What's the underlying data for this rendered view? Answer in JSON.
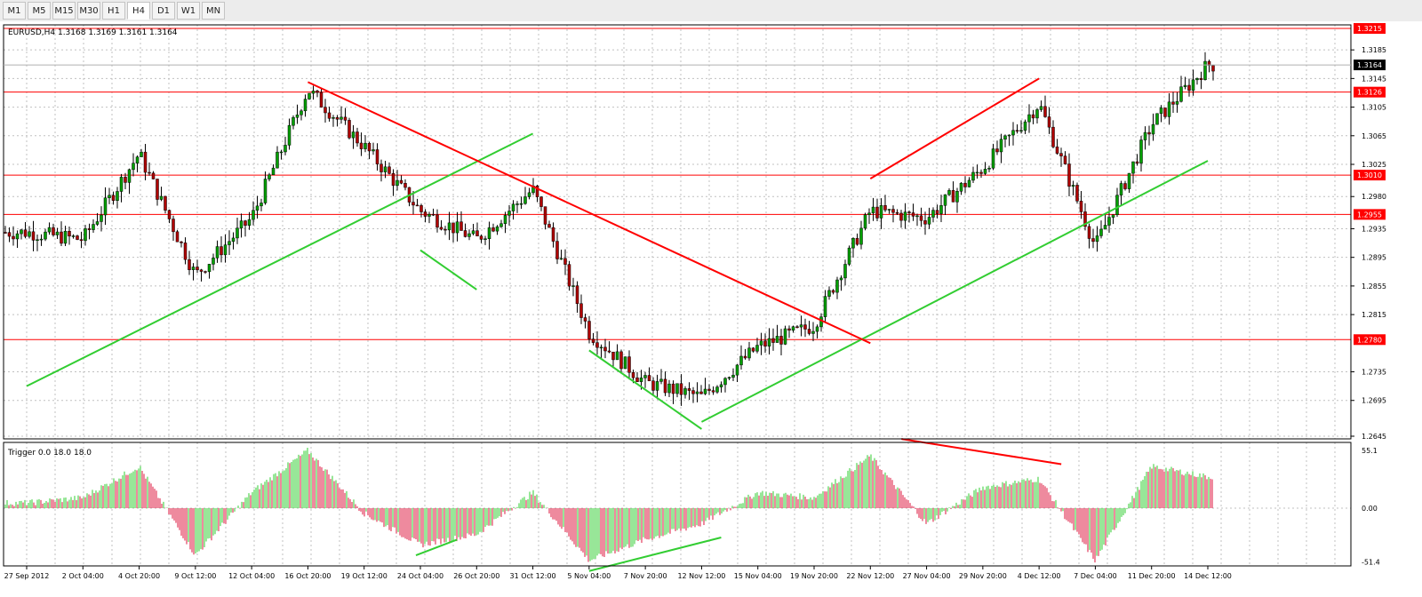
{
  "timeframes": {
    "items": [
      "M1",
      "M5",
      "M15",
      "M30",
      "H1",
      "H4",
      "D1",
      "W1",
      "MN"
    ],
    "active": "H4"
  },
  "main_panel": {
    "title": "EURUSD,H4  1.3168 1.3169 1.3161 1.3164",
    "price_ticks": [
      "1.3185",
      "1.3145",
      "1.3105",
      "1.3065",
      "1.3025",
      "1.2980",
      "1.2935",
      "1.2895",
      "1.2855",
      "1.2815",
      "1.2735",
      "1.2695",
      "1.2645"
    ],
    "current_price": "1.3164",
    "levels": [
      {
        "value": 1.3215,
        "label": "1.3215"
      },
      {
        "value": 1.3126,
        "label": "1.3126"
      },
      {
        "value": 1.301,
        "label": "1.3010"
      },
      {
        "value": 1.2955,
        "label": "1.2955"
      },
      {
        "value": 1.278,
        "label": "1.2780"
      }
    ]
  },
  "indicator_panel": {
    "title": "Trigger 0.0 18.0 18.0",
    "ticks": [
      "55.1",
      "0.00",
      "-51.4"
    ]
  },
  "time_axis": [
    "27 Sep 2012",
    "2 Oct 04:00",
    "4 Oct 20:00",
    "9 Oct 12:00",
    "12 Oct 04:00",
    "16 Oct 20:00",
    "19 Oct 12:00",
    "24 Oct 04:00",
    "26 Oct 20:00",
    "31 Oct 12:00",
    "5 Nov 04:00",
    "7 Nov 20:00",
    "12 Nov 12:00",
    "15 Nov 04:00",
    "19 Nov 20:00",
    "22 Nov 12:00",
    "27 Nov 04:00",
    "29 Nov 20:00",
    "4 Dec 12:00",
    "7 Dec 04:00",
    "11 Dec 20:00",
    "14 Dec 12:00"
  ],
  "colors": {
    "bull_candle": "#00a000",
    "bear_candle": "#b00000",
    "support_line": "#32cd32",
    "resistance_line": "#ff0000",
    "grid": "#c0c0c0",
    "level_label_bg": "#ff0000"
  },
  "chart_data": {
    "type": "candlestick",
    "symbol": "EURUSD",
    "timeframe": "H4",
    "ylim": [
      1.2645,
      1.3215
    ],
    "close_path": [
      {
        "t": "27 Sep 2012",
        "close": 1.293
      },
      {
        "t": "2 Oct 04:00",
        "close": 1.292
      },
      {
        "t": "4 Oct 20:00",
        "close": 1.304
      },
      {
        "t": "9 Oct 12:00",
        "close": 1.287
      },
      {
        "t": "12 Oct 04:00",
        "close": 1.295
      },
      {
        "t": "16 Oct 20:00",
        "close": 1.313
      },
      {
        "t": "19 Oct 12:00",
        "close": 1.305
      },
      {
        "t": "24 Oct 04:00",
        "close": 1.296
      },
      {
        "t": "26 Oct 20:00",
        "close": 1.292
      },
      {
        "t": "31 Oct 12:00",
        "close": 1.299
      },
      {
        "t": "5 Nov 04:00",
        "close": 1.279
      },
      {
        "t": "7 Nov 20:00",
        "close": 1.272
      },
      {
        "t": "12 Nov 12:00",
        "close": 1.27
      },
      {
        "t": "15 Nov 04:00",
        "close": 1.277
      },
      {
        "t": "19 Nov 20:00",
        "close": 1.28
      },
      {
        "t": "22 Nov 12:00",
        "close": 1.296
      },
      {
        "t": "27 Nov 04:00",
        "close": 1.295
      },
      {
        "t": "29 Nov 20:00",
        "close": 1.302
      },
      {
        "t": "4 Dec 12:00",
        "close": 1.311
      },
      {
        "t": "7 Dec 04:00",
        "close": 1.291
      },
      {
        "t": "11 Dec 20:00",
        "close": 1.308
      },
      {
        "t": "14 Dec 12:00",
        "close": 1.3164
      }
    ],
    "oscillator_path": [
      {
        "t": "27 Sep 2012",
        "v": 5
      },
      {
        "t": "2 Oct 04:00",
        "v": 10
      },
      {
        "t": "4 Oct 20:00",
        "v": 40
      },
      {
        "t": "9 Oct 12:00",
        "v": -45
      },
      {
        "t": "12 Oct 04:00",
        "v": 15
      },
      {
        "t": "16 Oct 20:00",
        "v": 55
      },
      {
        "t": "19 Oct 12:00",
        "v": -5
      },
      {
        "t": "24 Oct 04:00",
        "v": -35
      },
      {
        "t": "26 Oct 20:00",
        "v": -25
      },
      {
        "t": "31 Oct 12:00",
        "v": 15
      },
      {
        "t": "5 Nov 04:00",
        "v": -50
      },
      {
        "t": "7 Nov 20:00",
        "v": -30
      },
      {
        "t": "12 Nov 12:00",
        "v": -15
      },
      {
        "t": "15 Nov 04:00",
        "v": 15
      },
      {
        "t": "19 Nov 20:00",
        "v": 10
      },
      {
        "t": "22 Nov 12:00",
        "v": 50
      },
      {
        "t": "27 Nov 04:00",
        "v": -15
      },
      {
        "t": "29 Nov 20:00",
        "v": 20
      },
      {
        "t": "4 Dec 12:00",
        "v": 28
      },
      {
        "t": "7 Dec 04:00",
        "v": -50
      },
      {
        "t": "11 Dec 20:00",
        "v": 40
      },
      {
        "t": "14 Dec 12:00",
        "v": 30
      }
    ],
    "osc_ylim": [
      -51.4,
      55.1
    ],
    "trendlines": [
      {
        "color": "support",
        "from": {
          "t": "27 Sep 2012",
          "price": 1.2715
        },
        "to": {
          "t": "31 Oct 12:00",
          "price": 1.3068
        }
      },
      {
        "color": "support",
        "from": {
          "t": "12 Nov 12:00",
          "price": 1.2665
        },
        "to": {
          "t": "14 Dec 12:00",
          "price": 1.303
        }
      },
      {
        "color": "support",
        "from": {
          "t": "24 Oct 04:00",
          "price": 1.2905
        },
        "to": {
          "t": "26 Oct 20:00",
          "price": 1.285
        }
      },
      {
        "color": "support",
        "from": {
          "t": "5 Nov 04:00",
          "price": 1.2765
        },
        "to": {
          "t": "12 Nov 12:00",
          "price": 1.2655
        }
      },
      {
        "color": "resistance",
        "from": {
          "t": "16 Oct 20:00",
          "price": 1.314
        },
        "to": {
          "t": "22 Nov 12:00",
          "price": 1.2775
        }
      },
      {
        "color": "resistance",
        "from": {
          "t": "22 Nov 12:00",
          "price": 1.3005
        },
        "to": {
          "t": "4 Dec 12:00",
          "price": 1.3145
        }
      }
    ]
  }
}
